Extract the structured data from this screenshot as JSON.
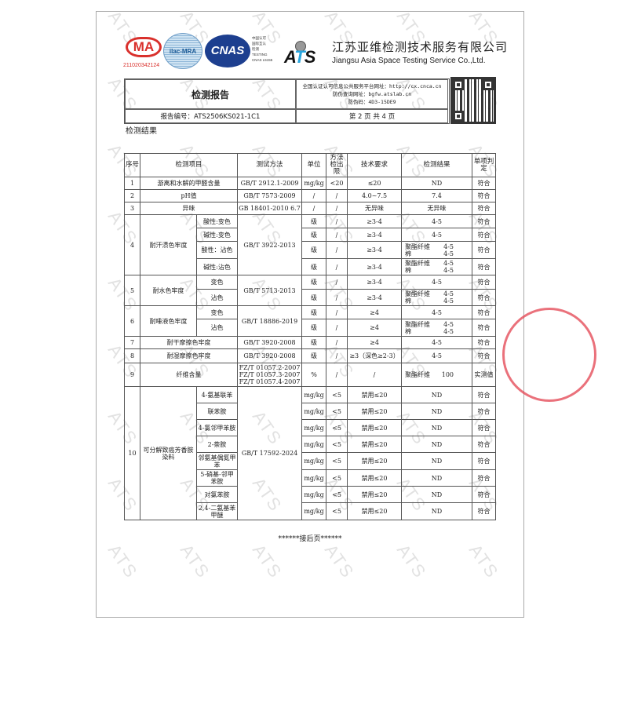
{
  "watermark": "ATS",
  "logos": {
    "cma": "CMA",
    "cma_number": "211020342124",
    "ilac": "ilac-MRA",
    "cnas": "CNAS",
    "cnas_note": "中国认可\n国际互认\n检测\nTESTING\nCNAS L5155",
    "ats": "ATS"
  },
  "company": {
    "name_cn": "江苏亚维检测技术服务有限公司",
    "name_en": "Jiangsu Asia Space Testing Service Co.,Ltd."
  },
  "header": {
    "title": "检测报告",
    "report_no": "报告编号：ATS2506KS021-1C1",
    "platform": "全国认证认可信息公共服务平台网址：http://cx.cnca.cn",
    "query": "防伪查询网址：bgfw.atslab.cn",
    "code": "防伪码：4D3-15DE9",
    "page": "第 2 页 共 4 页"
  },
  "section_title": "检测结果",
  "columns": [
    "序号",
    "检测项目",
    "测试方法",
    "单位",
    "方法检出限",
    "技术要求",
    "检测结果",
    "单项判定"
  ],
  "rows": [
    {
      "no": "1",
      "item": "游离和水解的甲醛含量",
      "method": "GB/T 2912.1-2009",
      "unit": "mg/kg",
      "limit": "<20",
      "req": "≤20",
      "result": "ND",
      "verdict": "符合"
    },
    {
      "no": "2",
      "item": "pH值",
      "method": "GB/T 7573-2009",
      "unit": "/",
      "limit": "/",
      "req": "4.0~7.5",
      "result": "7.4",
      "verdict": "符合"
    },
    {
      "no": "3",
      "item": "异味",
      "method": "GB 18401-2010 6.7",
      "unit": "/",
      "limit": "/",
      "req": "无异味",
      "result": "无异味",
      "verdict": "符合"
    },
    {
      "no": "4",
      "item": "耐汗渍色牢度",
      "method": "GB/T 3922-2013",
      "subs": [
        {
          "sub": "酸性:变色",
          "unit": "级",
          "limit": "/",
          "req": "≥3-4",
          "result": "4-5",
          "verdict": "符合"
        },
        {
          "sub": "碱性:变色",
          "unit": "级",
          "limit": "/",
          "req": "≥3-4",
          "result": "4-5",
          "verdict": "符合"
        },
        {
          "sub": "酸性：沾色",
          "unit": "级",
          "limit": "/",
          "req": "≥3-4",
          "result2": [
            [
              "聚酯纤维",
              "4-5"
            ],
            [
              "棉",
              "4-5"
            ]
          ],
          "verdict": "符合"
        },
        {
          "sub": "碱性:沾色",
          "unit": "级",
          "limit": "/",
          "req": "≥3-4",
          "result2": [
            [
              "聚酯纤维",
              "4-5"
            ],
            [
              "棉",
              "4-5"
            ]
          ],
          "verdict": "符合"
        }
      ]
    },
    {
      "no": "5",
      "item": "耐水色牢度",
      "method": "GB/T 5713-2013",
      "subs": [
        {
          "sub": "变色",
          "unit": "级",
          "limit": "/",
          "req": "≥3-4",
          "result": "4-5",
          "verdict": "符合"
        },
        {
          "sub": "沾色",
          "unit": "级",
          "limit": "/",
          "req": "≥3-4",
          "result2": [
            [
              "聚酯纤维",
              "4-5"
            ],
            [
              "棉",
              "4-5"
            ]
          ],
          "verdict": "符合"
        }
      ]
    },
    {
      "no": "6",
      "item": "耐唾液色牢度",
      "method": "GB/T  18886-2019",
      "subs": [
        {
          "sub": "变色",
          "unit": "级",
          "limit": "/",
          "req": "≥4",
          "result": "4-5",
          "verdict": "符合"
        },
        {
          "sub": "沾色",
          "unit": "级",
          "limit": "/",
          "req": "≥4",
          "result2": [
            [
              "聚酯纤维",
              "4-5"
            ],
            [
              "棉",
              "4-5"
            ]
          ],
          "verdict": "符合"
        }
      ]
    },
    {
      "no": "7",
      "item": "耐干摩擦色牢度",
      "method": "GB/T 3920-2008",
      "unit": "级",
      "limit": "/",
      "req": "≥4",
      "result": "4-5",
      "verdict": "符合"
    },
    {
      "no": "8",
      "item": "耐湿摩擦色牢度",
      "method": "GB/T 3920-2008",
      "unit": "级",
      "limit": "/",
      "req": "≥3（深色≥2-3）",
      "result": "4-5",
      "verdict": "符合"
    },
    {
      "no": "9",
      "item": "纤维含量",
      "method": "FZ/T 01057.2-2007\nFZ/T 01057.3-2007\nFZ/T 01057.4-2007",
      "unit": "%",
      "limit": "/",
      "req": "/",
      "result2": [
        [
          "聚酯纤维",
          "100"
        ]
      ],
      "verdict": "实测值"
    },
    {
      "no": "10",
      "item": "可分解致癌芳香胺染料",
      "method": "GB/T 17592-2024",
      "subs": [
        {
          "sub": "4-氨基联苯",
          "unit": "mg/kg",
          "limit": "<5",
          "req": "禁用≤20",
          "result": "ND",
          "verdict": "符合"
        },
        {
          "sub": "联苯胺",
          "unit": "mg/kg",
          "limit": "<5",
          "req": "禁用≤20",
          "result": "ND",
          "verdict": "符合"
        },
        {
          "sub": "4-氯邻甲苯胺",
          "unit": "mg/kg",
          "limit": "<5",
          "req": "禁用≤20",
          "result": "ND",
          "verdict": "符合"
        },
        {
          "sub": "2-萘胺",
          "unit": "mg/kg",
          "limit": "<5",
          "req": "禁用≤20",
          "result": "ND",
          "verdict": "符合"
        },
        {
          "sub": "邻氨基偶氮甲苯",
          "unit": "mg/kg",
          "limit": "<5",
          "req": "禁用≤20",
          "result": "ND",
          "verdict": "符合"
        },
        {
          "sub": "5-硝基-邻甲苯胺",
          "unit": "mg/kg",
          "limit": "<5",
          "req": "禁用≤20",
          "result": "ND",
          "verdict": "符合"
        },
        {
          "sub": "对氯苯胺",
          "unit": "mg/kg",
          "limit": "<5",
          "req": "禁用≤20",
          "result": "ND",
          "verdict": "符合"
        },
        {
          "sub": "2,4-二氨基苯甲醚",
          "unit": "mg/kg",
          "limit": "<5",
          "req": "禁用≤20",
          "result": "ND",
          "verdict": "符合"
        }
      ]
    }
  ],
  "continued": "******接后页******",
  "stamp": "检验检测专用章",
  "colors": {
    "stamp": "#e3424f",
    "cma": "#d9302c",
    "cnas": "#1d3f8f",
    "ats_accent": "#29a6df"
  }
}
